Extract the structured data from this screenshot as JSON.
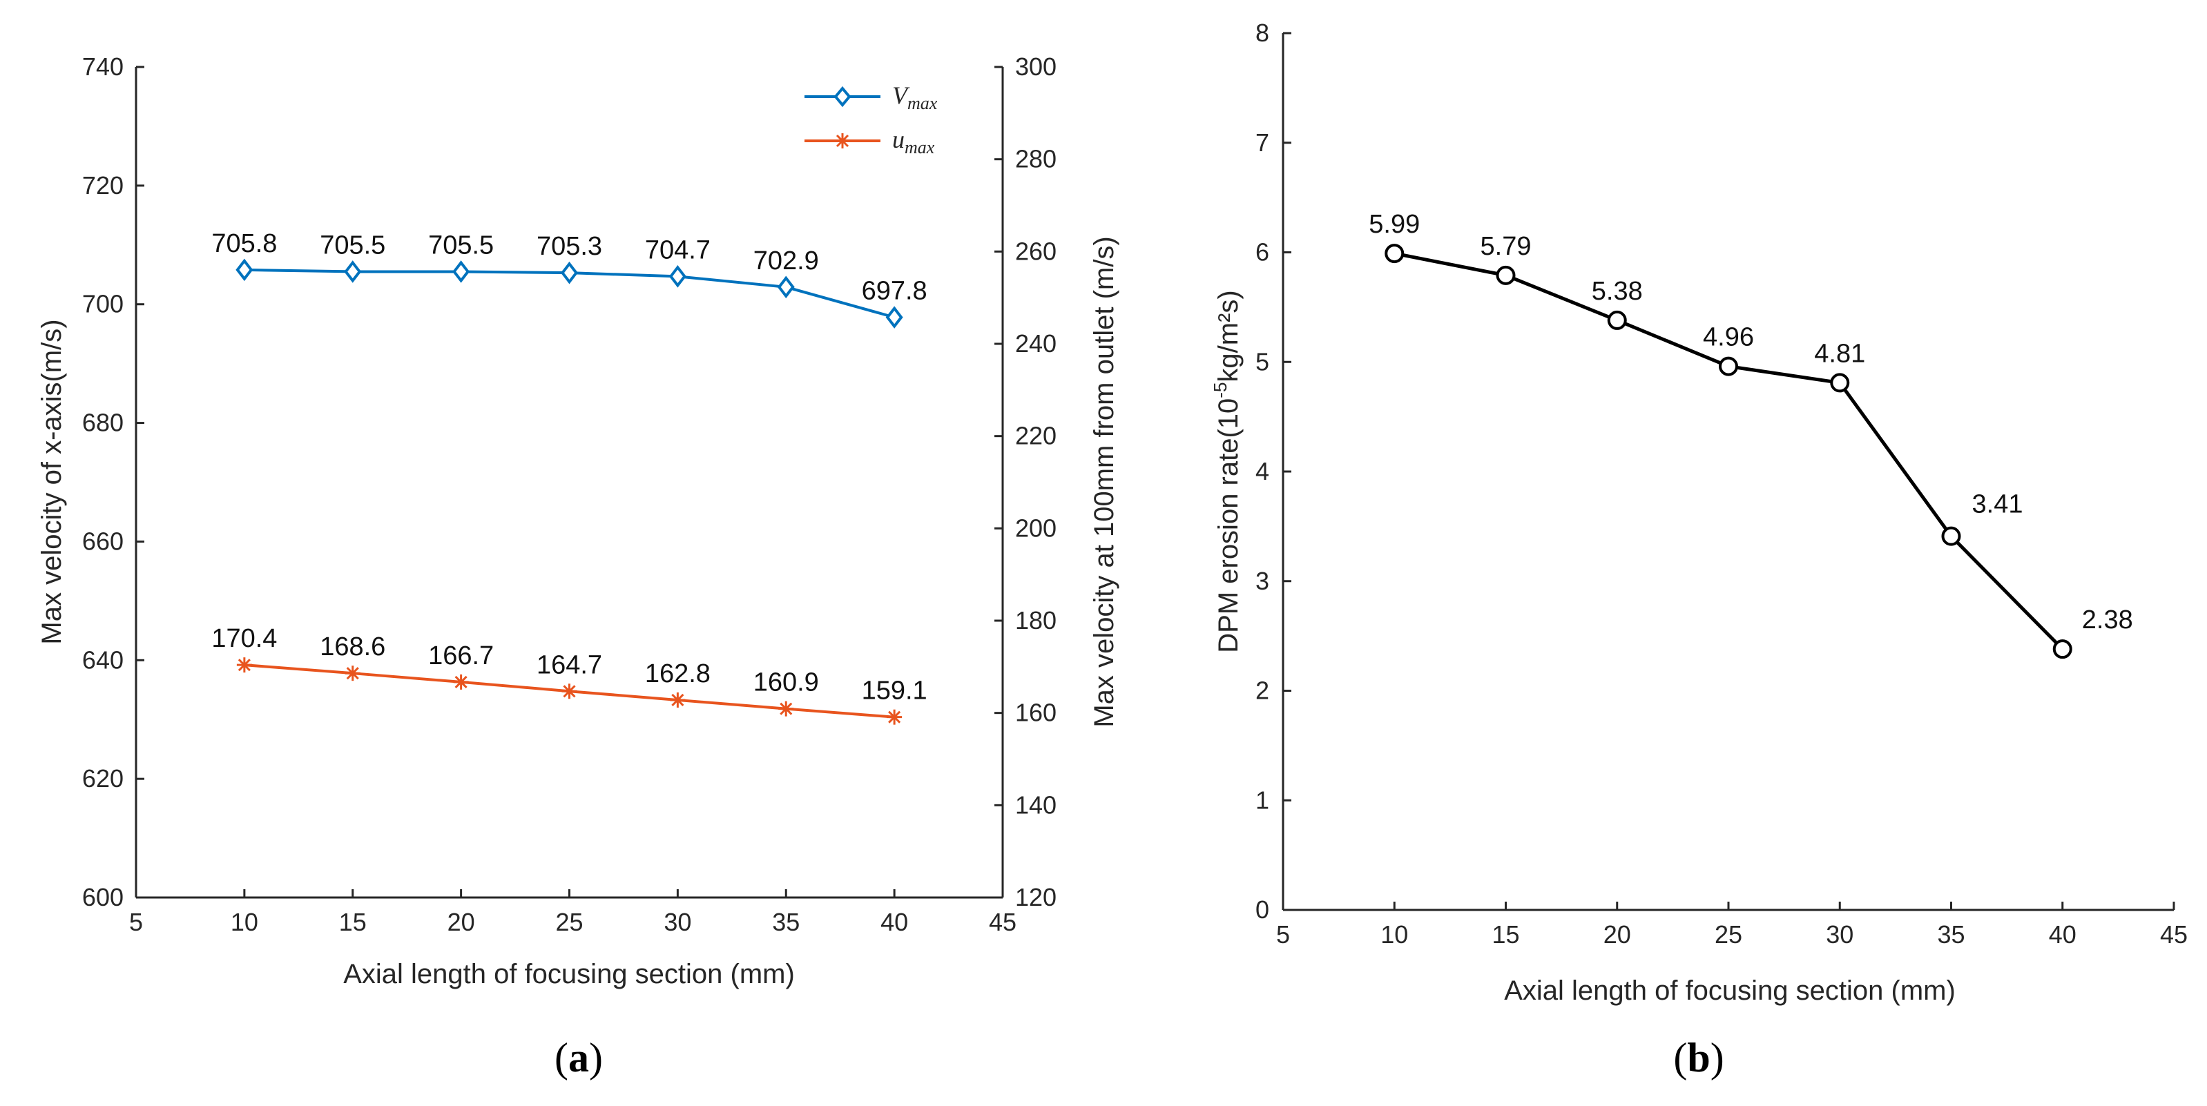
{
  "chart_data": [
    {
      "panel": "(a)",
      "type": "line",
      "xlabel": "Axial length of focusing section (mm)",
      "ylabel": "Max velocity of  x-axis(m/s)",
      "ylabel_right": "Max velocity at 100mm from outlet (m/s)",
      "xlim": [
        5,
        45
      ],
      "ylim": [
        600,
        740
      ],
      "ylim_right": [
        120,
        300
      ],
      "xticks": [
        "5",
        "10",
        "15",
        "20",
        "25",
        "30",
        "35",
        "40",
        "45"
      ],
      "yticks": [
        "600",
        "620",
        "640",
        "660",
        "680",
        "700",
        "720",
        "740"
      ],
      "yticks_right": [
        "120",
        "140",
        "160",
        "180",
        "200",
        "220",
        "240",
        "260",
        "280",
        "300"
      ],
      "legend_position": "top-right",
      "x": [
        10,
        15,
        20,
        25,
        30,
        35,
        40
      ],
      "series": [
        {
          "name": "V_max",
          "legend_main": "V",
          "legend_sub": "max",
          "axis": "left",
          "color": "#0072BD",
          "marker": "diamond",
          "values": [
            705.8,
            705.5,
            705.5,
            705.3,
            704.7,
            702.9,
            697.8
          ],
          "labels": [
            "705.8",
            "705.5",
            "705.5",
            "705.3",
            "704.7",
            "702.9",
            "697.8"
          ]
        },
        {
          "name": "u_max",
          "legend_main": "u",
          "legend_sub": "max",
          "axis": "right",
          "color": "#E8541E",
          "marker": "asterisk",
          "values": [
            170.4,
            168.6,
            166.7,
            164.7,
            162.8,
            160.9,
            159.1
          ],
          "labels": [
            "170.4",
            "168.6",
            "166.7",
            "164.7",
            "162.8",
            "160.9",
            "159.1"
          ]
        }
      ]
    },
    {
      "panel": "(b)",
      "type": "line",
      "xlabel": "Axial length of focusing section (mm)",
      "ylabel_prefix": "DPM erosion rate(10",
      "ylabel_sup": "-5",
      "ylabel_suffix": "kg/m²s)",
      "xlim": [
        5,
        45
      ],
      "ylim": [
        0,
        8
      ],
      "xticks": [
        "5",
        "10",
        "15",
        "20",
        "25",
        "30",
        "35",
        "40",
        "45"
      ],
      "yticks": [
        "0",
        "1",
        "2",
        "3",
        "4",
        "5",
        "6",
        "7",
        "8"
      ],
      "x": [
        10,
        15,
        20,
        25,
        30,
        35,
        40
      ],
      "series": [
        {
          "name": "DPM erosion rate",
          "color": "#000000",
          "marker": "circle",
          "values": [
            5.99,
            5.79,
            5.38,
            4.96,
            4.81,
            3.41,
            2.38
          ],
          "labels": [
            "5.99",
            "5.79",
            "5.38",
            "4.96",
            "4.81",
            "3.41",
            "2.38"
          ]
        }
      ]
    }
  ]
}
